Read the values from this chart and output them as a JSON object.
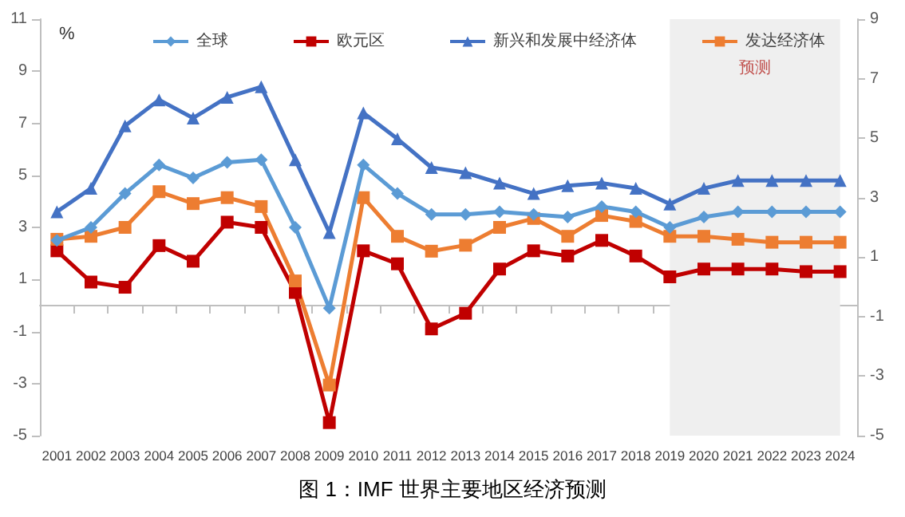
{
  "chart_data": {
    "type": "line",
    "title": "图 1：IMF 世界主要地区经济预测",
    "ylabel": "%",
    "categories": [
      "2001",
      "2002",
      "2003",
      "2004",
      "2005",
      "2006",
      "2007",
      "2008",
      "2009",
      "2010",
      "2011",
      "2012",
      "2013",
      "2014",
      "2015",
      "2016",
      "2017",
      "2018",
      "2019",
      "2020",
      "2021",
      "2022",
      "2023",
      "2024"
    ],
    "series": [
      {
        "name": "全球",
        "color": "#5b9bd5",
        "marker": "diamond",
        "values": [
          2.5,
          3.0,
          4.3,
          5.4,
          4.9,
          5.5,
          5.6,
          3.0,
          -0.1,
          5.4,
          4.3,
          3.5,
          3.5,
          3.6,
          3.5,
          3.4,
          3.8,
          3.6,
          3.0,
          3.4,
          3.6,
          3.6,
          3.6,
          3.6
        ]
      },
      {
        "name": "欧元区",
        "color": "#c00000",
        "marker": "square",
        "values": [
          2.1,
          0.9,
          0.7,
          2.3,
          1.7,
          3.2,
          3.0,
          0.5,
          -4.5,
          2.1,
          1.6,
          -0.9,
          -0.3,
          1.4,
          2.1,
          1.9,
          2.5,
          1.9,
          1.1,
          1.4,
          1.4,
          1.4,
          1.3,
          1.3
        ]
      },
      {
        "name": "新兴和发展中经济体",
        "color": "#4472c4",
        "marker": "triangle",
        "values": [
          3.6,
          4.5,
          6.9,
          7.9,
          7.2,
          8.0,
          8.4,
          5.6,
          2.8,
          7.4,
          6.4,
          5.3,
          5.1,
          4.7,
          4.3,
          4.6,
          4.7,
          4.5,
          3.9,
          4.5,
          4.8,
          4.8,
          4.8,
          4.8
        ]
      },
      {
        "name": "发达经济体",
        "color": "#ed7d31",
        "marker": "square",
        "axis": "y2",
        "values": [
          1.6,
          1.7,
          2.0,
          3.2,
          2.8,
          3.0,
          2.7,
          0.2,
          -3.3,
          3.0,
          1.7,
          1.2,
          1.4,
          2.0,
          2.3,
          1.7,
          2.4,
          2.2,
          1.7,
          1.7,
          1.6,
          1.5,
          1.5,
          1.5
        ]
      }
    ],
    "ylim": [
      -5,
      11
    ],
    "yticks": [
      -5,
      -3,
      -1,
      1,
      3,
      5,
      7,
      9,
      11
    ],
    "y2lim": [
      -5,
      9
    ],
    "y2ticks": [
      -5,
      -3,
      -1,
      1,
      3,
      5,
      7,
      9
    ],
    "bands": [
      {
        "axis": "x",
        "from": "2019",
        "to": "2024",
        "label": "预测",
        "color": "#efefef"
      }
    ],
    "legend": "top",
    "grid": false
  }
}
